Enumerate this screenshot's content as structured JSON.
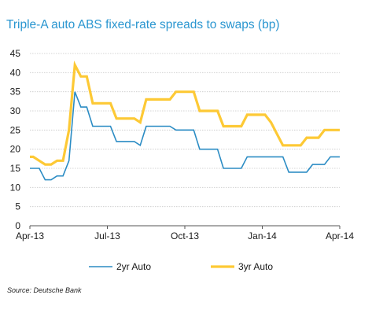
{
  "title": "Triple-A auto ABS fixed-rate spreads to swaps (bp)",
  "source": "Source: Deutsche Bank",
  "chart_data": {
    "type": "line",
    "title": "Triple-A auto ABS fixed-rate spreads to swaps (bp)",
    "xlabel": "",
    "ylabel": "",
    "x_tick_labels": [
      "Apr-13",
      "Jul-13",
      "Oct-13",
      "Jan-14",
      "Apr-14"
    ],
    "x_range": [
      "2013-04-01",
      "2014-04-01"
    ],
    "ylim": [
      0,
      45
    ],
    "y_ticks": [
      0,
      5,
      10,
      15,
      20,
      25,
      30,
      35,
      40,
      45
    ],
    "grid": "horizontal",
    "legend": "bottom",
    "x": [
      "2013-04-01",
      "2013-04-05",
      "2013-04-12",
      "2013-04-19",
      "2013-04-26",
      "2013-05-03",
      "2013-05-10",
      "2013-05-17",
      "2013-05-24",
      "2013-05-31",
      "2013-06-07",
      "2013-06-14",
      "2013-06-21",
      "2013-06-28",
      "2013-07-05",
      "2013-07-12",
      "2013-07-19",
      "2013-07-26",
      "2013-08-02",
      "2013-08-09",
      "2013-08-16",
      "2013-08-23",
      "2013-08-30",
      "2013-09-06",
      "2013-09-13",
      "2013-09-20",
      "2013-09-27",
      "2013-10-04",
      "2013-10-11",
      "2013-10-18",
      "2013-10-25",
      "2013-11-01",
      "2013-11-08",
      "2013-11-15",
      "2013-11-22",
      "2013-11-29",
      "2013-12-06",
      "2013-12-13",
      "2013-12-20",
      "2013-12-27",
      "2014-01-03",
      "2014-01-10",
      "2014-01-17",
      "2014-01-24",
      "2014-01-31",
      "2014-02-07",
      "2014-02-14",
      "2014-02-21",
      "2014-02-28",
      "2014-03-07",
      "2014-03-14",
      "2014-03-21",
      "2014-03-28",
      "2014-04-04"
    ],
    "series": [
      {
        "name": "2yr Auto",
        "color": "#2b8cc4",
        "values": [
          15,
          15,
          15,
          12,
          12,
          13,
          13,
          17,
          35,
          31,
          31,
          26,
          26,
          26,
          26,
          22,
          22,
          22,
          22,
          21,
          26,
          26,
          26,
          26,
          26,
          25,
          25,
          25,
          25,
          20,
          20,
          20,
          20,
          15,
          15,
          15,
          15,
          18,
          18,
          18,
          18,
          18,
          18,
          18,
          14,
          14,
          14,
          14,
          16,
          16,
          16,
          18,
          18,
          18
        ]
      },
      {
        "name": "3yr Auto",
        "color": "#fdc935",
        "values": [
          18,
          18,
          17,
          16,
          16,
          17,
          17,
          25,
          42,
          39,
          39,
          32,
          32,
          32,
          32,
          28,
          28,
          28,
          28,
          27,
          33,
          33,
          33,
          33,
          33,
          35,
          35,
          35,
          35,
          30,
          30,
          30,
          30,
          26,
          26,
          26,
          26,
          29,
          29,
          29,
          29,
          27,
          24,
          21,
          21,
          21,
          21,
          23,
          23,
          23,
          25,
          25,
          25,
          25
        ]
      }
    ]
  },
  "legend": {
    "items": [
      {
        "label": "2yr Auto",
        "color": "#2b8cc4"
      },
      {
        "label": "3yr Auto",
        "color": "#fdc935"
      }
    ]
  }
}
